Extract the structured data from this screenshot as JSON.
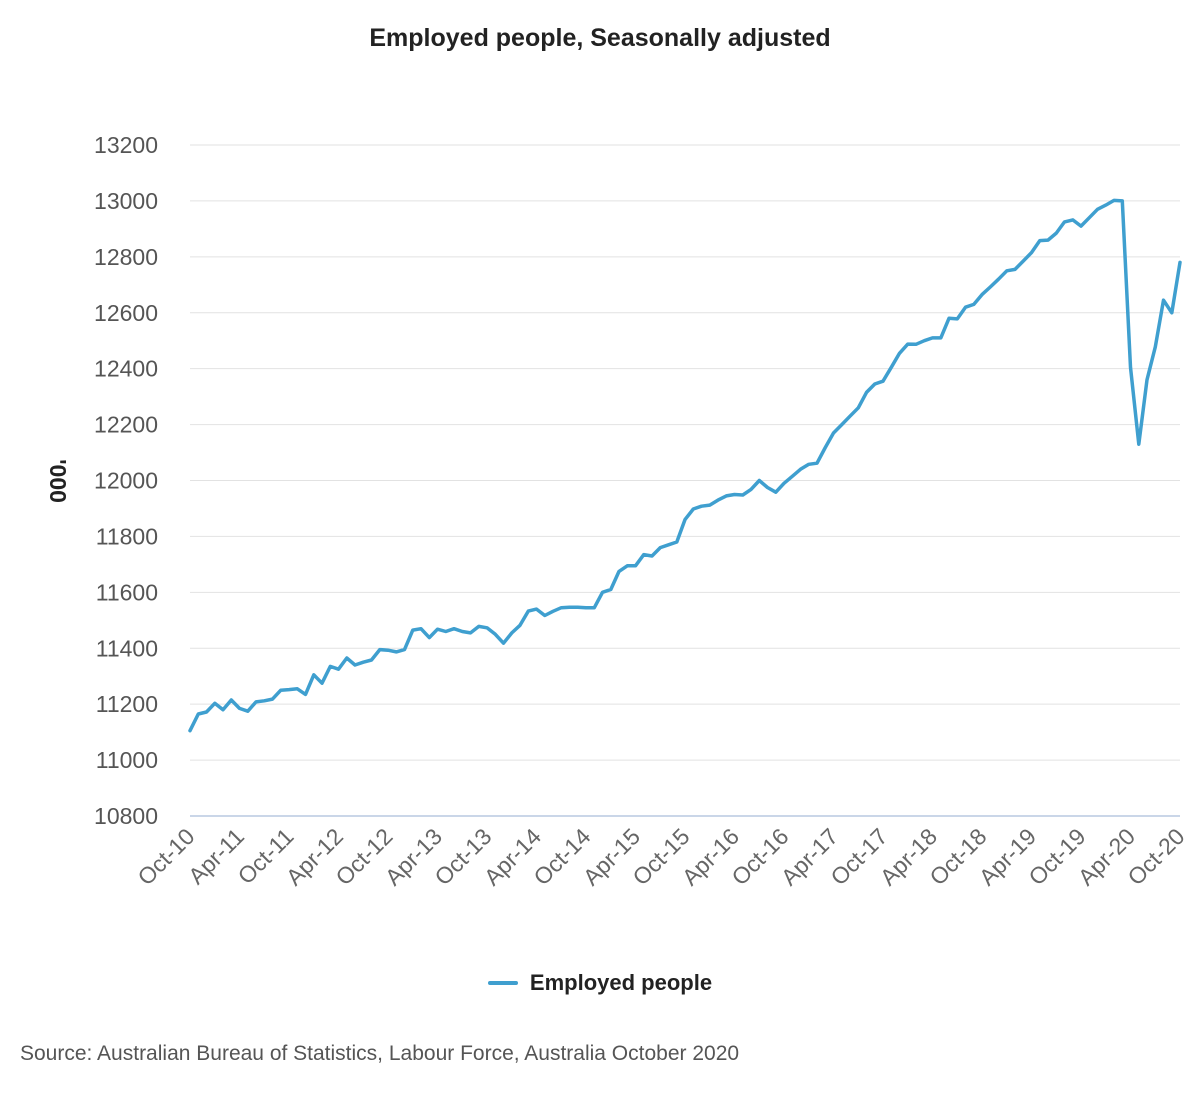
{
  "chart_data": {
    "type": "line",
    "title": "Employed people, Seasonally adjusted",
    "ylabel": "'000",
    "xlabel": "",
    "ylim": [
      10800,
      13200
    ],
    "y_ticks": [
      10800,
      11000,
      11200,
      11400,
      11600,
      11800,
      12000,
      12200,
      12400,
      12600,
      12800,
      13000,
      13200
    ],
    "x_ticks": [
      "Oct-10",
      "Apr-11",
      "Oct-11",
      "Apr-12",
      "Oct-12",
      "Apr-13",
      "Oct-13",
      "Apr-14",
      "Oct-14",
      "Apr-15",
      "Oct-15",
      "Apr-16",
      "Oct-16",
      "Apr-17",
      "Oct-17",
      "Apr-18",
      "Oct-18",
      "Apr-19",
      "Oct-19",
      "Apr-20",
      "Oct-20"
    ],
    "grid": true,
    "legend_position": "bottom",
    "series": [
      {
        "name": "Employed people",
        "color": "#3f9fcf",
        "x": [
          "Oct-10",
          "Nov-10",
          "Dec-10",
          "Jan-11",
          "Feb-11",
          "Mar-11",
          "Apr-11",
          "May-11",
          "Jun-11",
          "Jul-11",
          "Aug-11",
          "Sep-11",
          "Oct-11",
          "Nov-11",
          "Dec-11",
          "Jan-12",
          "Feb-12",
          "Mar-12",
          "Apr-12",
          "May-12",
          "Jun-12",
          "Jul-12",
          "Aug-12",
          "Sep-12",
          "Oct-12",
          "Nov-12",
          "Dec-12",
          "Jan-13",
          "Feb-13",
          "Mar-13",
          "Apr-13",
          "May-13",
          "Jun-13",
          "Jul-13",
          "Aug-13",
          "Sep-13",
          "Oct-13",
          "Nov-13",
          "Dec-13",
          "Jan-14",
          "Feb-14",
          "Mar-14",
          "Apr-14",
          "May-14",
          "Jun-14",
          "Jul-14",
          "Aug-14",
          "Sep-14",
          "Oct-14",
          "Nov-14",
          "Dec-14",
          "Jan-15",
          "Feb-15",
          "Mar-15",
          "Apr-15",
          "May-15",
          "Jun-15",
          "Jul-15",
          "Aug-15",
          "Sep-15",
          "Oct-15",
          "Nov-15",
          "Dec-15",
          "Jan-16",
          "Feb-16",
          "Mar-16",
          "Apr-16",
          "May-16",
          "Jun-16",
          "Jul-16",
          "Aug-16",
          "Sep-16",
          "Oct-16",
          "Nov-16",
          "Dec-16",
          "Jan-17",
          "Feb-17",
          "Mar-17",
          "Apr-17",
          "May-17",
          "Jun-17",
          "Jul-17",
          "Aug-17",
          "Sep-17",
          "Oct-17",
          "Nov-17",
          "Dec-17",
          "Jan-18",
          "Feb-18",
          "Mar-18",
          "Apr-18",
          "May-18",
          "Jun-18",
          "Jul-18",
          "Aug-18",
          "Sep-18",
          "Oct-18",
          "Nov-18",
          "Dec-18",
          "Jan-19",
          "Feb-19",
          "Mar-19",
          "Apr-19",
          "May-19",
          "Jun-19",
          "Jul-19",
          "Aug-19",
          "Sep-19",
          "Oct-19",
          "Nov-19",
          "Dec-19",
          "Jan-20",
          "Feb-20",
          "Mar-20",
          "Apr-20",
          "May-20",
          "Jun-20",
          "Jul-20",
          "Aug-20",
          "Sep-20",
          "Oct-20"
        ],
        "values": [
          11105,
          11165,
          11172,
          11203,
          11180,
          11215,
          11185,
          11175,
          11208,
          11212,
          11218,
          11250,
          11252,
          11255,
          11235,
          11305,
          11275,
          11335,
          11325,
          11365,
          11340,
          11350,
          11358,
          11395,
          11393,
          11387,
          11395,
          11465,
          11470,
          11438,
          11468,
          11460,
          11470,
          11460,
          11455,
          11478,
          11473,
          11450,
          11418,
          11455,
          11482,
          11533,
          11540,
          11517,
          11532,
          11545,
          11547,
          11547,
          11545,
          11545,
          11600,
          11610,
          11675,
          11695,
          11695,
          11735,
          11730,
          11760,
          11770,
          11780,
          11860,
          11898,
          11908,
          11912,
          11930,
          11945,
          11950,
          11948,
          11968,
          12000,
          11975,
          11958,
          11990,
          12015,
          12040,
          12058,
          12062,
          12118,
          12170,
          12200,
          12230,
          12260,
          12315,
          12345,
          12355,
          12405,
          12455,
          12488,
          12487,
          12500,
          12510,
          12510,
          12580,
          12578,
          12620,
          12630,
          12665,
          12692,
          12720,
          12750,
          12755,
          12785,
          12815,
          12858,
          12860,
          12885,
          12925,
          12932,
          12910,
          12940,
          12970,
          12985,
          13002,
          13000,
          12405,
          12130,
          12360,
          12478,
          12645,
          12600,
          12780
        ]
      }
    ]
  },
  "source_note": "Source: Australian Bureau of Statistics, Labour Force, Australia October 2020"
}
